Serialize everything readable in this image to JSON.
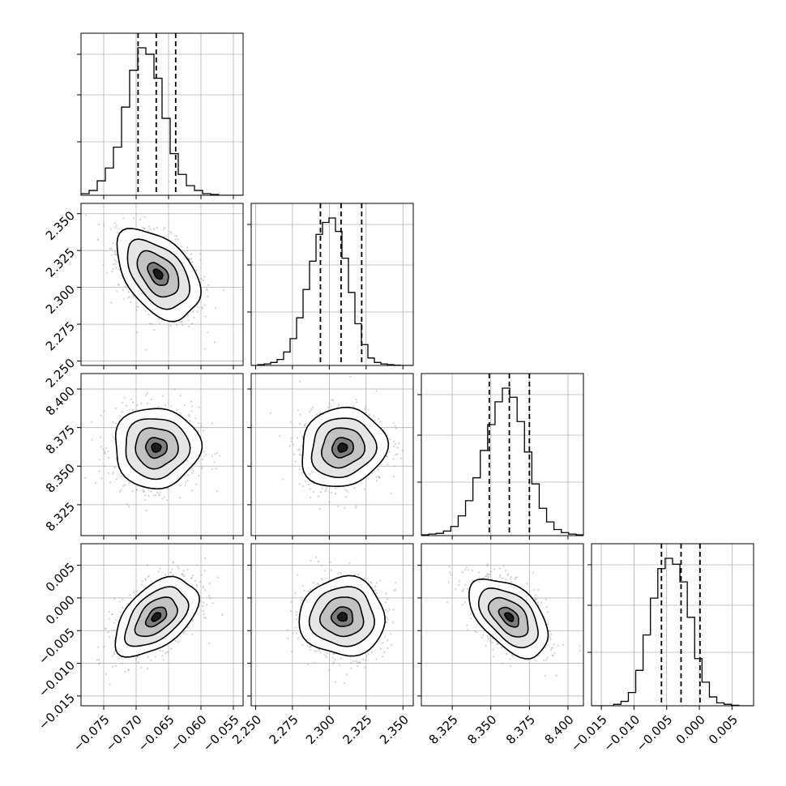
{
  "chart_data": {
    "type": "corner",
    "parameters": [
      {
        "range": [
          -0.0785,
          -0.0535
        ],
        "ticks": [
          -0.075,
          -0.07,
          -0.065,
          -0.06,
          -0.055
        ],
        "tick_labels": [
          "−0.075",
          "−0.070",
          "−0.065",
          "−0.060",
          "−0.055"
        ],
        "quantiles": [
          -0.0697,
          -0.0669,
          -0.0639
        ],
        "median": -0.0669
      },
      {
        "range": [
          2.247,
          2.357
        ],
        "ticks": [
          2.25,
          2.275,
          2.3,
          2.325,
          2.35
        ],
        "tick_labels": [
          "2.250",
          "2.275",
          "2.300",
          "2.325",
          "2.350"
        ],
        "quantiles": [
          2.294,
          2.308,
          2.322
        ],
        "median": 2.308
      },
      {
        "range": [
          8.305,
          8.41
        ],
        "ticks": [
          8.325,
          8.35,
          8.375,
          8.4
        ],
        "tick_labels": [
          "8.325",
          "8.350",
          "8.375",
          "8.400"
        ],
        "quantiles": [
          8.349,
          8.362,
          8.375
        ],
        "median": 8.362
      },
      {
        "range": [
          -0.0165,
          0.0083
        ],
        "ticks": [
          -0.015,
          -0.01,
          -0.005,
          0.0,
          0.005
        ],
        "tick_labels": [
          "−0.015",
          "−0.010",
          "−0.005",
          "0.000",
          "0.005"
        ],
        "quantiles": [
          -0.0058,
          -0.0028,
          0.0001
        ],
        "median": -0.0028
      }
    ],
    "histograms": [
      {
        "counts": [
          1,
          3,
          9,
          17,
          30,
          55,
          78,
          92,
          88,
          73,
          48,
          26,
          13,
          6,
          3,
          1,
          0.5,
          0,
          0,
          0
        ]
      },
      {
        "counts": [
          0,
          0.5,
          1,
          2,
          4,
          9,
          18,
          32,
          51,
          70,
          88,
          96,
          99,
          90,
          72,
          49,
          28,
          14,
          5,
          2,
          1,
          0.5,
          0.2,
          0,
          0
        ]
      },
      {
        "counts": [
          0.5,
          1,
          1.5,
          3,
          6,
          13,
          23,
          38,
          56,
          73,
          88,
          97,
          91,
          75,
          55,
          34,
          18,
          9,
          4,
          2,
          1,
          0.5
        ]
      },
      {
        "counts": [
          0,
          0,
          0,
          1,
          3,
          9,
          24,
          48,
          73,
          93,
          100,
          96,
          84,
          60,
          32,
          16,
          6,
          2,
          1,
          0.3,
          0,
          0
        ]
      }
    ],
    "pairs": [
      {
        "x": 0,
        "y": 1,
        "center": [
          -0.0666,
          2.309
        ],
        "sd": [
          0.0032,
          0.0154
        ],
        "corr": -0.45
      },
      {
        "x": 0,
        "y": 2,
        "center": [
          -0.0669,
          8.362
        ],
        "sd": [
          0.0033,
          0.013
        ],
        "corr": 0.0
      },
      {
        "x": 1,
        "y": 2,
        "center": [
          2.309,
          8.362
        ],
        "sd": [
          0.0145,
          0.0128
        ],
        "corr": 0.1
      },
      {
        "x": 0,
        "y": 3,
        "center": [
          -0.0669,
          -0.0029
        ],
        "sd": [
          0.0032,
          0.003
        ],
        "corr": 0.5
      },
      {
        "x": 1,
        "y": 3,
        "center": [
          2.309,
          -0.0029
        ],
        "sd": [
          0.0145,
          0.003
        ],
        "corr": 0.0
      },
      {
        "x": 2,
        "y": 3,
        "center": [
          8.362,
          -0.0029
        ],
        "sd": [
          0.0128,
          0.003
        ],
        "corr": -0.5
      }
    ],
    "title": "",
    "xlabel": "",
    "ylabel": "",
    "grid": true
  }
}
